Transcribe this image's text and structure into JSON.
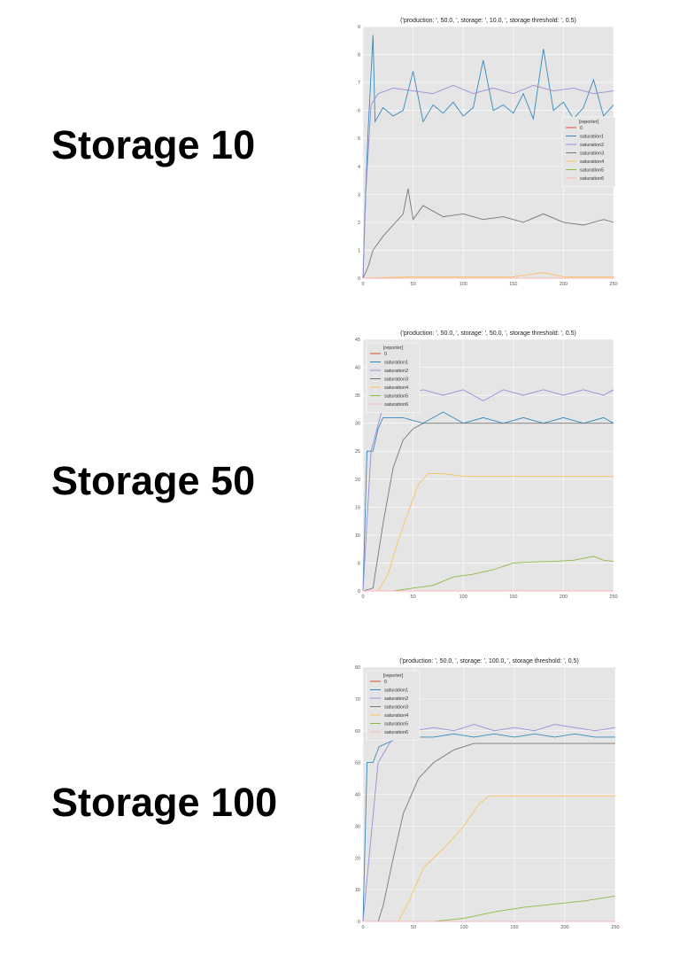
{
  "headings": [
    "Storage 10",
    "Storage 50",
    "Storage 100"
  ],
  "chart_data": [
    {
      "type": "line",
      "title": "('production: ', 50.0, ', storage: ', 10.0, ', storage threshold: ', 0.5)",
      "xlabel": "",
      "ylabel": "",
      "xlim": [
        0,
        250
      ],
      "ylim": [
        0,
        9
      ],
      "xticks": [
        0,
        50,
        100,
        150,
        200,
        250
      ],
      "yticks": [
        0,
        1,
        2,
        3,
        4,
        5,
        6,
        7,
        8,
        9
      ],
      "grid": true,
      "legend_title": "[reporter]",
      "legend_position": "center-right",
      "legend": [
        "0",
        "saturation1",
        "saturation2",
        "saturation3",
        "saturation4",
        "saturation5",
        "saturation6"
      ],
      "series": [
        {
          "name": "0",
          "color": "#e24a33",
          "values": [
            [
              0,
              0
            ],
            [
              250,
              0
            ]
          ]
        },
        {
          "name": "saturation1",
          "color": "#348abd",
          "values": [
            [
              0,
              0
            ],
            [
              2,
              2.5
            ],
            [
              5,
              5.2
            ],
            [
              10,
              8.7
            ],
            [
              12,
              5.6
            ],
            [
              20,
              6.1
            ],
            [
              30,
              5.8
            ],
            [
              40,
              6.0
            ],
            [
              50,
              7.4
            ],
            [
              60,
              5.6
            ],
            [
              70,
              6.2
            ],
            [
              80,
              5.9
            ],
            [
              90,
              6.3
            ],
            [
              100,
              5.8
            ],
            [
              110,
              6.1
            ],
            [
              120,
              7.8
            ],
            [
              130,
              6.0
            ],
            [
              140,
              6.2
            ],
            [
              150,
              5.9
            ],
            [
              160,
              6.6
            ],
            [
              170,
              5.7
            ],
            [
              180,
              8.2
            ],
            [
              190,
              6.0
            ],
            [
              200,
              6.3
            ],
            [
              210,
              5.7
            ],
            [
              220,
              6.1
            ],
            [
              230,
              7.1
            ],
            [
              240,
              5.8
            ],
            [
              250,
              6.2
            ]
          ]
        },
        {
          "name": "saturation2",
          "color": "#988ed5",
          "values": [
            [
              0,
              0
            ],
            [
              3,
              3.2
            ],
            [
              8,
              6.2
            ],
            [
              15,
              6.6
            ],
            [
              30,
              6.8
            ],
            [
              50,
              6.7
            ],
            [
              70,
              6.6
            ],
            [
              90,
              6.9
            ],
            [
              110,
              6.6
            ],
            [
              130,
              6.8
            ],
            [
              150,
              6.6
            ],
            [
              170,
              6.9
            ],
            [
              190,
              6.7
            ],
            [
              210,
              6.8
            ],
            [
              230,
              6.6
            ],
            [
              250,
              6.7
            ]
          ]
        },
        {
          "name": "saturation3",
          "color": "#777777",
          "values": [
            [
              0,
              0
            ],
            [
              5,
              0.4
            ],
            [
              10,
              1.0
            ],
            [
              20,
              1.5
            ],
            [
              30,
              1.9
            ],
            [
              40,
              2.3
            ],
            [
              45,
              3.2
            ],
            [
              50,
              2.1
            ],
            [
              60,
              2.6
            ],
            [
              70,
              2.4
            ],
            [
              80,
              2.2
            ],
            [
              100,
              2.3
            ],
            [
              120,
              2.1
            ],
            [
              140,
              2.2
            ],
            [
              160,
              2.0
            ],
            [
              180,
              2.3
            ],
            [
              200,
              2.0
            ],
            [
              220,
              1.9
            ],
            [
              240,
              2.1
            ],
            [
              250,
              2.0
            ]
          ]
        },
        {
          "name": "saturation4",
          "color": "#fbc15e",
          "values": [
            [
              0,
              0
            ],
            [
              50,
              0.05
            ],
            [
              100,
              0.05
            ],
            [
              150,
              0.05
            ],
            [
              180,
              0.2
            ],
            [
              200,
              0.05
            ],
            [
              250,
              0.05
            ]
          ]
        },
        {
          "name": "saturation5",
          "color": "#8eba42",
          "values": [
            [
              0,
              0
            ],
            [
              250,
              0
            ]
          ]
        },
        {
          "name": "saturation6",
          "color": "#ffb5b8",
          "values": [
            [
              0,
              0
            ],
            [
              250,
              0
            ]
          ]
        }
      ]
    },
    {
      "type": "line",
      "title": "('production: ', 50.0, ', storage: ', 50.0, ', storage threshold: ', 0.5)",
      "xlabel": "",
      "ylabel": "",
      "xlim": [
        0,
        250
      ],
      "ylim": [
        0,
        45
      ],
      "xticks": [
        0,
        50,
        100,
        150,
        200,
        250
      ],
      "yticks": [
        0,
        5,
        10,
        15,
        20,
        25,
        30,
        35,
        40,
        45
      ],
      "grid": true,
      "legend_title": "[reporter]",
      "legend_position": "upper-left",
      "legend": [
        "0",
        "saturation1",
        "saturation2",
        "saturation3",
        "saturation4",
        "saturation5",
        "saturation6"
      ],
      "series": [
        {
          "name": "0",
          "color": "#e24a33",
          "values": [
            [
              0,
              0
            ],
            [
              250,
              0
            ]
          ]
        },
        {
          "name": "saturation1",
          "color": "#348abd",
          "values": [
            [
              0,
              0
            ],
            [
              4,
              25
            ],
            [
              10,
              25
            ],
            [
              15,
              29
            ],
            [
              20,
              31
            ],
            [
              40,
              31
            ],
            [
              60,
              30
            ],
            [
              80,
              32
            ],
            [
              100,
              30
            ],
            [
              120,
              31
            ],
            [
              140,
              30
            ],
            [
              160,
              31
            ],
            [
              180,
              30
            ],
            [
              200,
              31
            ],
            [
              220,
              30
            ],
            [
              240,
              31
            ],
            [
              250,
              30
            ]
          ]
        },
        {
          "name": "saturation2",
          "color": "#988ed5",
          "values": [
            [
              0,
              0
            ],
            [
              8,
              25
            ],
            [
              20,
              33
            ],
            [
              40,
              35
            ],
            [
              60,
              36
            ],
            [
              80,
              35
            ],
            [
              100,
              36
            ],
            [
              120,
              34
            ],
            [
              140,
              36
            ],
            [
              160,
              35
            ],
            [
              180,
              36
            ],
            [
              200,
              35
            ],
            [
              220,
              36
            ],
            [
              240,
              35
            ],
            [
              250,
              36
            ]
          ]
        },
        {
          "name": "saturation3",
          "color": "#777777",
          "values": [
            [
              0,
              0
            ],
            [
              10,
              0.5
            ],
            [
              20,
              12
            ],
            [
              30,
              22
            ],
            [
              40,
              27
            ],
            [
              50,
              29
            ],
            [
              60,
              30
            ],
            [
              80,
              30
            ],
            [
              100,
              30
            ],
            [
              150,
              30
            ],
            [
              200,
              30
            ],
            [
              250,
              30
            ]
          ]
        },
        {
          "name": "saturation4",
          "color": "#fbc15e",
          "values": [
            [
              0,
              0
            ],
            [
              15,
              0
            ],
            [
              25,
              3
            ],
            [
              35,
              9
            ],
            [
              45,
              14
            ],
            [
              55,
              19
            ],
            [
              65,
              21
            ],
            [
              80,
              21
            ],
            [
              100,
              20.5
            ],
            [
              150,
              20.5
            ],
            [
              200,
              20.5
            ],
            [
              250,
              20.5
            ]
          ]
        },
        {
          "name": "saturation5",
          "color": "#8eba42",
          "values": [
            [
              0,
              0
            ],
            [
              30,
              0
            ],
            [
              50,
              0.5
            ],
            [
              70,
              1
            ],
            [
              90,
              2.5
            ],
            [
              110,
              3
            ],
            [
              130,
              3.8
            ],
            [
              150,
              5
            ],
            [
              170,
              5.2
            ],
            [
              190,
              5.3
            ],
            [
              210,
              5.5
            ],
            [
              230,
              6.2
            ],
            [
              240,
              5.5
            ],
            [
              250,
              5.3
            ]
          ]
        },
        {
          "name": "saturation6",
          "color": "#ffb5b8",
          "values": [
            [
              0,
              0
            ],
            [
              250,
              0
            ]
          ]
        }
      ]
    },
    {
      "type": "line",
      "title": "('production: ', 50.0, ', storage: ', 100.0, ', storage threshold: ', 0.5)",
      "xlabel": "",
      "ylabel": "",
      "xlim": [
        0,
        250
      ],
      "ylim": [
        0,
        80
      ],
      "xticks": [
        0,
        50,
        100,
        150,
        200,
        250
      ],
      "yticks": [
        0,
        10,
        20,
        30,
        40,
        50,
        60,
        70,
        80
      ],
      "grid": true,
      "legend_title": "[reporter]",
      "legend_position": "upper-left",
      "legend": [
        "0",
        "saturation1",
        "saturation2",
        "saturation3",
        "saturation4",
        "saturation5",
        "saturation6"
      ],
      "series": [
        {
          "name": "0",
          "color": "#e24a33",
          "values": [
            [
              0,
              0
            ],
            [
              250,
              0
            ]
          ]
        },
        {
          "name": "saturation1",
          "color": "#348abd",
          "values": [
            [
              0,
              0
            ],
            [
              4,
              50
            ],
            [
              10,
              50
            ],
            [
              16,
              55
            ],
            [
              30,
              57
            ],
            [
              50,
              58
            ],
            [
              70,
              58
            ],
            [
              90,
              59
            ],
            [
              110,
              58
            ],
            [
              130,
              59
            ],
            [
              150,
              58
            ],
            [
              170,
              59
            ],
            [
              190,
              58
            ],
            [
              210,
              59
            ],
            [
              230,
              58
            ],
            [
              250,
              58
            ]
          ]
        },
        {
          "name": "saturation2",
          "color": "#988ed5",
          "values": [
            [
              0,
              0
            ],
            [
              15,
              50
            ],
            [
              30,
              58
            ],
            [
              50,
              60
            ],
            [
              70,
              61
            ],
            [
              90,
              60
            ],
            [
              110,
              62
            ],
            [
              130,
              60
            ],
            [
              150,
              61
            ],
            [
              170,
              60
            ],
            [
              190,
              62
            ],
            [
              210,
              61
            ],
            [
              230,
              60
            ],
            [
              250,
              61
            ]
          ]
        },
        {
          "name": "saturation3",
          "color": "#777777",
          "values": [
            [
              0,
              0
            ],
            [
              15,
              0
            ],
            [
              20,
              5
            ],
            [
              30,
              20
            ],
            [
              40,
              34
            ],
            [
              55,
              45
            ],
            [
              70,
              50
            ],
            [
              90,
              54
            ],
            [
              110,
              56
            ],
            [
              150,
              56
            ],
            [
              200,
              56
            ],
            [
              250,
              56
            ]
          ]
        },
        {
          "name": "saturation4",
          "color": "#fbc15e",
          "values": [
            [
              0,
              0
            ],
            [
              35,
              0
            ],
            [
              45,
              6
            ],
            [
              60,
              17
            ],
            [
              80,
              23
            ],
            [
              100,
              30
            ],
            [
              115,
              37
            ],
            [
              125,
              39.5
            ],
            [
              150,
              39.5
            ],
            [
              200,
              39.5
            ],
            [
              250,
              39.5
            ]
          ]
        },
        {
          "name": "saturation5",
          "color": "#8eba42",
          "values": [
            [
              0,
              0
            ],
            [
              70,
              0
            ],
            [
              100,
              1
            ],
            [
              130,
              3
            ],
            [
              160,
              4.5
            ],
            [
              190,
              5.5
            ],
            [
              220,
              6.5
            ],
            [
              250,
              8
            ]
          ]
        },
        {
          "name": "saturation6",
          "color": "#ffb5b8",
          "values": [
            [
              0,
              0
            ],
            [
              250,
              0
            ]
          ]
        }
      ]
    }
  ]
}
